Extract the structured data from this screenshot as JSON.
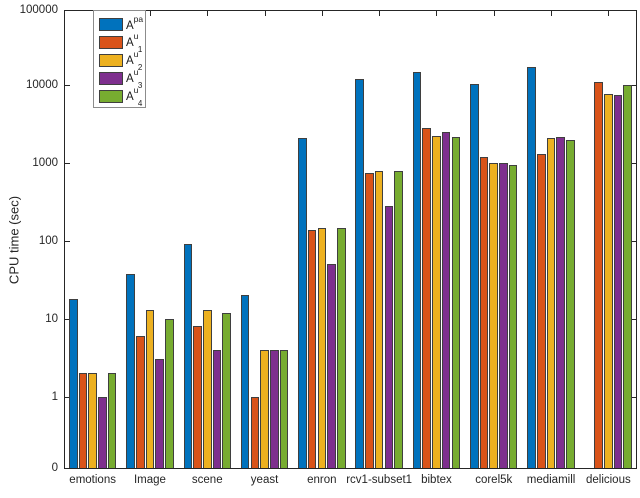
{
  "figure": {
    "ylabel": "CPU time (sec)",
    "axis_color": "#262626",
    "background": "#ffffff"
  },
  "legend": {
    "position": "top-left-inside",
    "entries": [
      {
        "name": "A^pa",
        "base": "A",
        "sup": "pa",
        "sub": "",
        "color": "#0072BD"
      },
      {
        "name": "A^u_1",
        "base": "A",
        "sup": "u",
        "sub": "1",
        "color": "#D95319"
      },
      {
        "name": "A^u_2",
        "base": "A",
        "sup": "u",
        "sub": "2",
        "color": "#EDB120"
      },
      {
        "name": "A^u_3",
        "base": "A",
        "sup": "u",
        "sub": "3",
        "color": "#7E2F8E"
      },
      {
        "name": "A^u_4",
        "base": "A",
        "sup": "u",
        "sub": "4",
        "color": "#77AC30"
      }
    ]
  },
  "chart_data": {
    "type": "bar",
    "yscale": "log",
    "title": "",
    "xlabel": "",
    "ylabel": "CPU time (sec)",
    "grid": false,
    "legend_position": "top-left inside",
    "ylim": [
      0,
      100000
    ],
    "ytick_labels": [
      "0",
      "1",
      "10",
      "100",
      "1000",
      "10000",
      "100000"
    ],
    "categories": [
      "emotions",
      "Image",
      "scene",
      "yeast",
      "enron",
      "rcv1-subset1",
      "bibtex",
      "corel5k",
      "mediamill",
      "delicious"
    ],
    "series": [
      {
        "name": "A^pa",
        "color": "#0072BD",
        "values": [
          18,
          37,
          90,
          20,
          2100,
          12000,
          15000,
          10500,
          17000,
          null
        ]
      },
      {
        "name": "A^u_1",
        "color": "#D95319",
        "values": [
          2,
          6,
          8,
          1,
          140,
          740,
          2800,
          1200,
          1300,
          11000
        ]
      },
      {
        "name": "A^u_2",
        "color": "#EDB120",
        "values": [
          2,
          13,
          13,
          4,
          145,
          800,
          2200,
          1000,
          2100,
          7700
        ]
      },
      {
        "name": "A^u_3",
        "color": "#7E2F8E",
        "values": [
          1,
          3,
          4,
          4,
          50,
          280,
          2500,
          1000,
          2150,
          7400
        ]
      },
      {
        "name": "A^u_4",
        "color": "#77AC30",
        "values": [
          2,
          10,
          12,
          4,
          145,
          780,
          2150,
          950,
          2000,
          10000
        ]
      }
    ]
  }
}
